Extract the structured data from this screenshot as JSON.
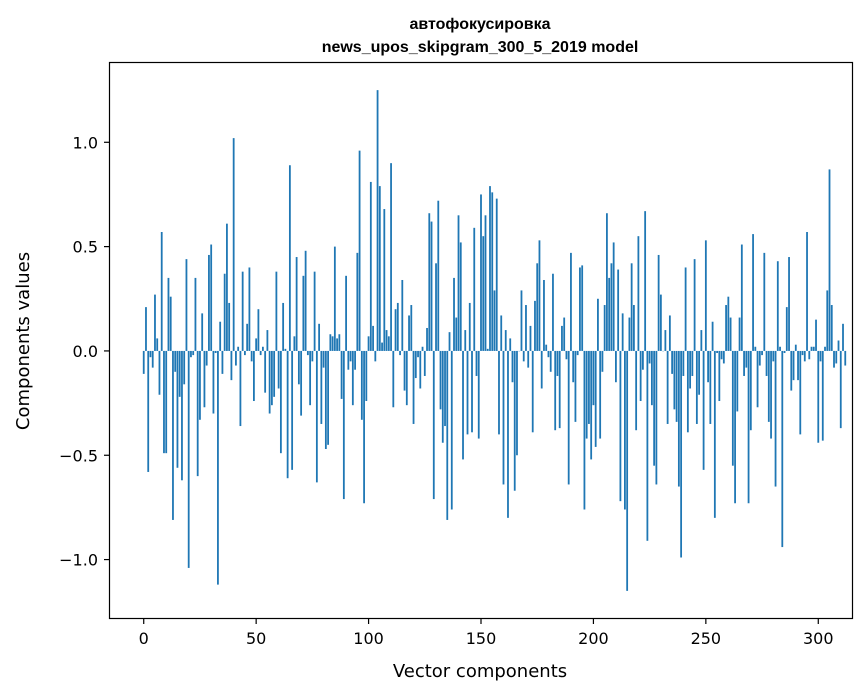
{
  "chart_data": {
    "type": "bar",
    "title": "автофокусировка",
    "subtitle": "news_upos_skipgram_300_5_2019 model",
    "xlabel": "Vector components",
    "ylabel": "Components values",
    "xlim": [
      -15,
      315
    ],
    "ylim": [
      -1.28,
      1.38
    ],
    "xticks": [
      0,
      50,
      100,
      150,
      200,
      250,
      300
    ],
    "xtick_labels": [
      "0",
      "50",
      "100",
      "150",
      "200",
      "250",
      "300"
    ],
    "yticks": [
      -1.0,
      -0.5,
      0.0,
      0.5,
      1.0
    ],
    "ytick_labels": [
      "−1.0",
      "−0.5",
      "0.0",
      "0.5",
      "1.0"
    ],
    "grid": false,
    "bar_color": "#1f77b4",
    "values": [
      -0.11,
      0.21,
      -0.58,
      -0.03,
      -0.08,
      0.27,
      0.06,
      -0.21,
      0.57,
      -0.49,
      -0.49,
      0.35,
      0.26,
      -0.81,
      -0.1,
      -0.56,
      -0.22,
      -0.62,
      -0.16,
      0.44,
      -1.04,
      -0.03,
      -0.02,
      0.35,
      -0.6,
      -0.33,
      0.18,
      -0.27,
      -0.07,
      0.46,
      0.51,
      -0.3,
      -0.01,
      -1.12,
      0.14,
      -0.11,
      0.37,
      0.61,
      0.23,
      -0.14,
      1.02,
      -0.07,
      0.02,
      -0.36,
      0.38,
      -0.02,
      0.13,
      0.4,
      -0.05,
      -0.24,
      0.06,
      0.2,
      -0.02,
      0.02,
      -0.2,
      0.1,
      -0.3,
      -0.26,
      -0.22,
      0.38,
      -0.18,
      -0.49,
      0.23,
      0.01,
      -0.61,
      0.89,
      -0.57,
      0.07,
      0.45,
      -0.16,
      -0.31,
      0.36,
      0.48,
      -0.02,
      -0.26,
      -0.05,
      0.38,
      -0.63,
      0.13,
      -0.35,
      -0.08,
      -0.47,
      -0.45,
      0.08,
      0.07,
      0.5,
      0.06,
      0.08,
      -0.23,
      -0.71,
      0.36,
      -0.09,
      -0.05,
      -0.26,
      -0.09,
      0.47,
      0.96,
      -0.33,
      -0.73,
      -0.24,
      0.07,
      0.81,
      0.12,
      -0.05,
      1.25,
      0.79,
      0.04,
      0.68,
      0.1,
      0.07,
      0.9,
      -0.27,
      0.2,
      0.23,
      -0.02,
      0.34,
      -0.19,
      -0.26,
      0.17,
      0.22,
      -0.35,
      -0.13,
      -0.03,
      -0.18,
      0.02,
      -0.12,
      0.11,
      0.66,
      0.62,
      -0.71,
      0.42,
      0.72,
      -0.28,
      -0.44,
      -0.36,
      -0.81,
      0.09,
      -0.76,
      0.35,
      0.16,
      0.65,
      0.52,
      -0.52,
      0.1,
      -0.4,
      0.23,
      -0.39,
      0.59,
      -0.12,
      -0.42,
      0.75,
      0.55,
      0.65,
      0.01,
      0.79,
      0.76,
      0.29,
      0.73,
      -0.4,
      0.17,
      -0.64,
      0.1,
      -0.8,
      0.06,
      -0.15,
      -0.67,
      -0.5,
      0.0,
      0.29,
      -0.05,
      0.22,
      -0.08,
      0.12,
      -0.39,
      0.24,
      0.42,
      0.53,
      -0.18,
      0.34,
      0.03,
      -0.03,
      -0.1,
      0.37,
      -0.38,
      -0.12,
      -0.37,
      0.12,
      0.16,
      -0.04,
      -0.64,
      0.47,
      -0.15,
      -0.34,
      -0.02,
      0.4,
      0.41,
      -0.76,
      -0.42,
      -0.35,
      -0.52,
      -0.26,
      -0.46,
      0.25,
      -0.42,
      -0.1,
      0.22,
      0.66,
      0.35,
      0.42,
      0.52,
      -0.15,
      0.39,
      -0.72,
      0.18,
      -0.76,
      -1.15,
      0.16,
      0.42,
      0.22,
      -0.38,
      0.55,
      -0.24,
      -0.09,
      0.67,
      -0.91,
      -0.06,
      -0.26,
      -0.55,
      -0.64,
      0.46,
      0.27,
      0.0,
      0.1,
      -0.35,
      0.17,
      -0.11,
      -0.28,
      -0.34,
      -0.65,
      -0.99,
      -0.12,
      0.4,
      -0.39,
      -0.18,
      -0.12,
      0.44,
      -0.35,
      -0.21,
      0.1,
      -0.57,
      0.53,
      -0.15,
      -0.35,
      0.14,
      -0.8,
      -0.01,
      -0.24,
      -0.04,
      -0.06,
      0.22,
      0.26,
      0.16,
      -0.55,
      -0.73,
      -0.29,
      0.16,
      0.51,
      -0.12,
      -0.08,
      -0.73,
      -0.38,
      0.56,
      0.02,
      -0.27,
      -0.07,
      -0.02,
      0.47,
      -0.12,
      -0.34,
      -0.42,
      -0.05,
      -0.65,
      0.43,
      0.02,
      -0.94,
      -0.01,
      0.21,
      0.45,
      -0.19,
      -0.14,
      0.03,
      -0.14,
      -0.4,
      -0.02,
      -0.05,
      0.57,
      -0.04,
      0.02,
      0.02,
      0.15,
      -0.44,
      -0.05,
      -0.43,
      0.02,
      0.29,
      0.87,
      0.22,
      -0.08,
      -0.06,
      0.05,
      -0.37,
      0.13,
      -0.07
    ]
  }
}
